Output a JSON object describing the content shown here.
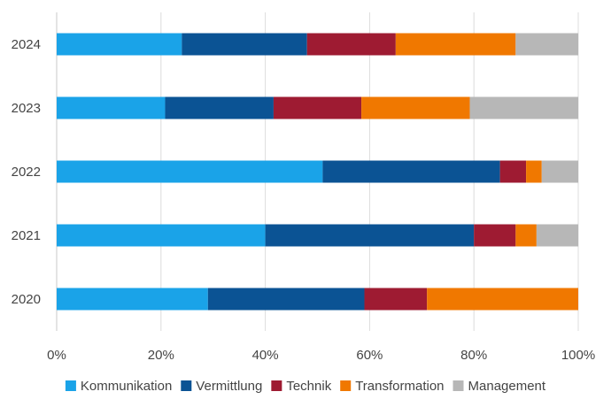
{
  "chart_data": {
    "type": "bar",
    "orientation": "horizontal",
    "stacked": "percent",
    "title": "",
    "xlabel": "",
    "ylabel": "",
    "xlim": [
      0,
      100
    ],
    "x_ticks": [
      "0%",
      "20%",
      "40%",
      "60%",
      "80%",
      "100%"
    ],
    "categories": [
      "2024",
      "2023",
      "2022",
      "2021",
      "2020"
    ],
    "series": [
      {
        "name": "Kommunikation",
        "color": "#1AA3E8",
        "values": [
          24,
          21,
          51,
          40,
          29
        ]
      },
      {
        "name": "Vermittlung",
        "color": "#0B5394",
        "values": [
          24,
          21,
          34,
          40,
          30
        ]
      },
      {
        "name": "Technik",
        "color": "#9E1B32",
        "values": [
          17,
          17,
          5,
          8,
          12
        ]
      },
      {
        "name": "Transformation",
        "color": "#F07800",
        "values": [
          23,
          21,
          3,
          4,
          29
        ]
      },
      {
        "name": "Management",
        "color": "#B7B7B7",
        "values": [
          12,
          21,
          7,
          8,
          0
        ]
      }
    ],
    "grid": true,
    "legend_position": "bottom"
  }
}
